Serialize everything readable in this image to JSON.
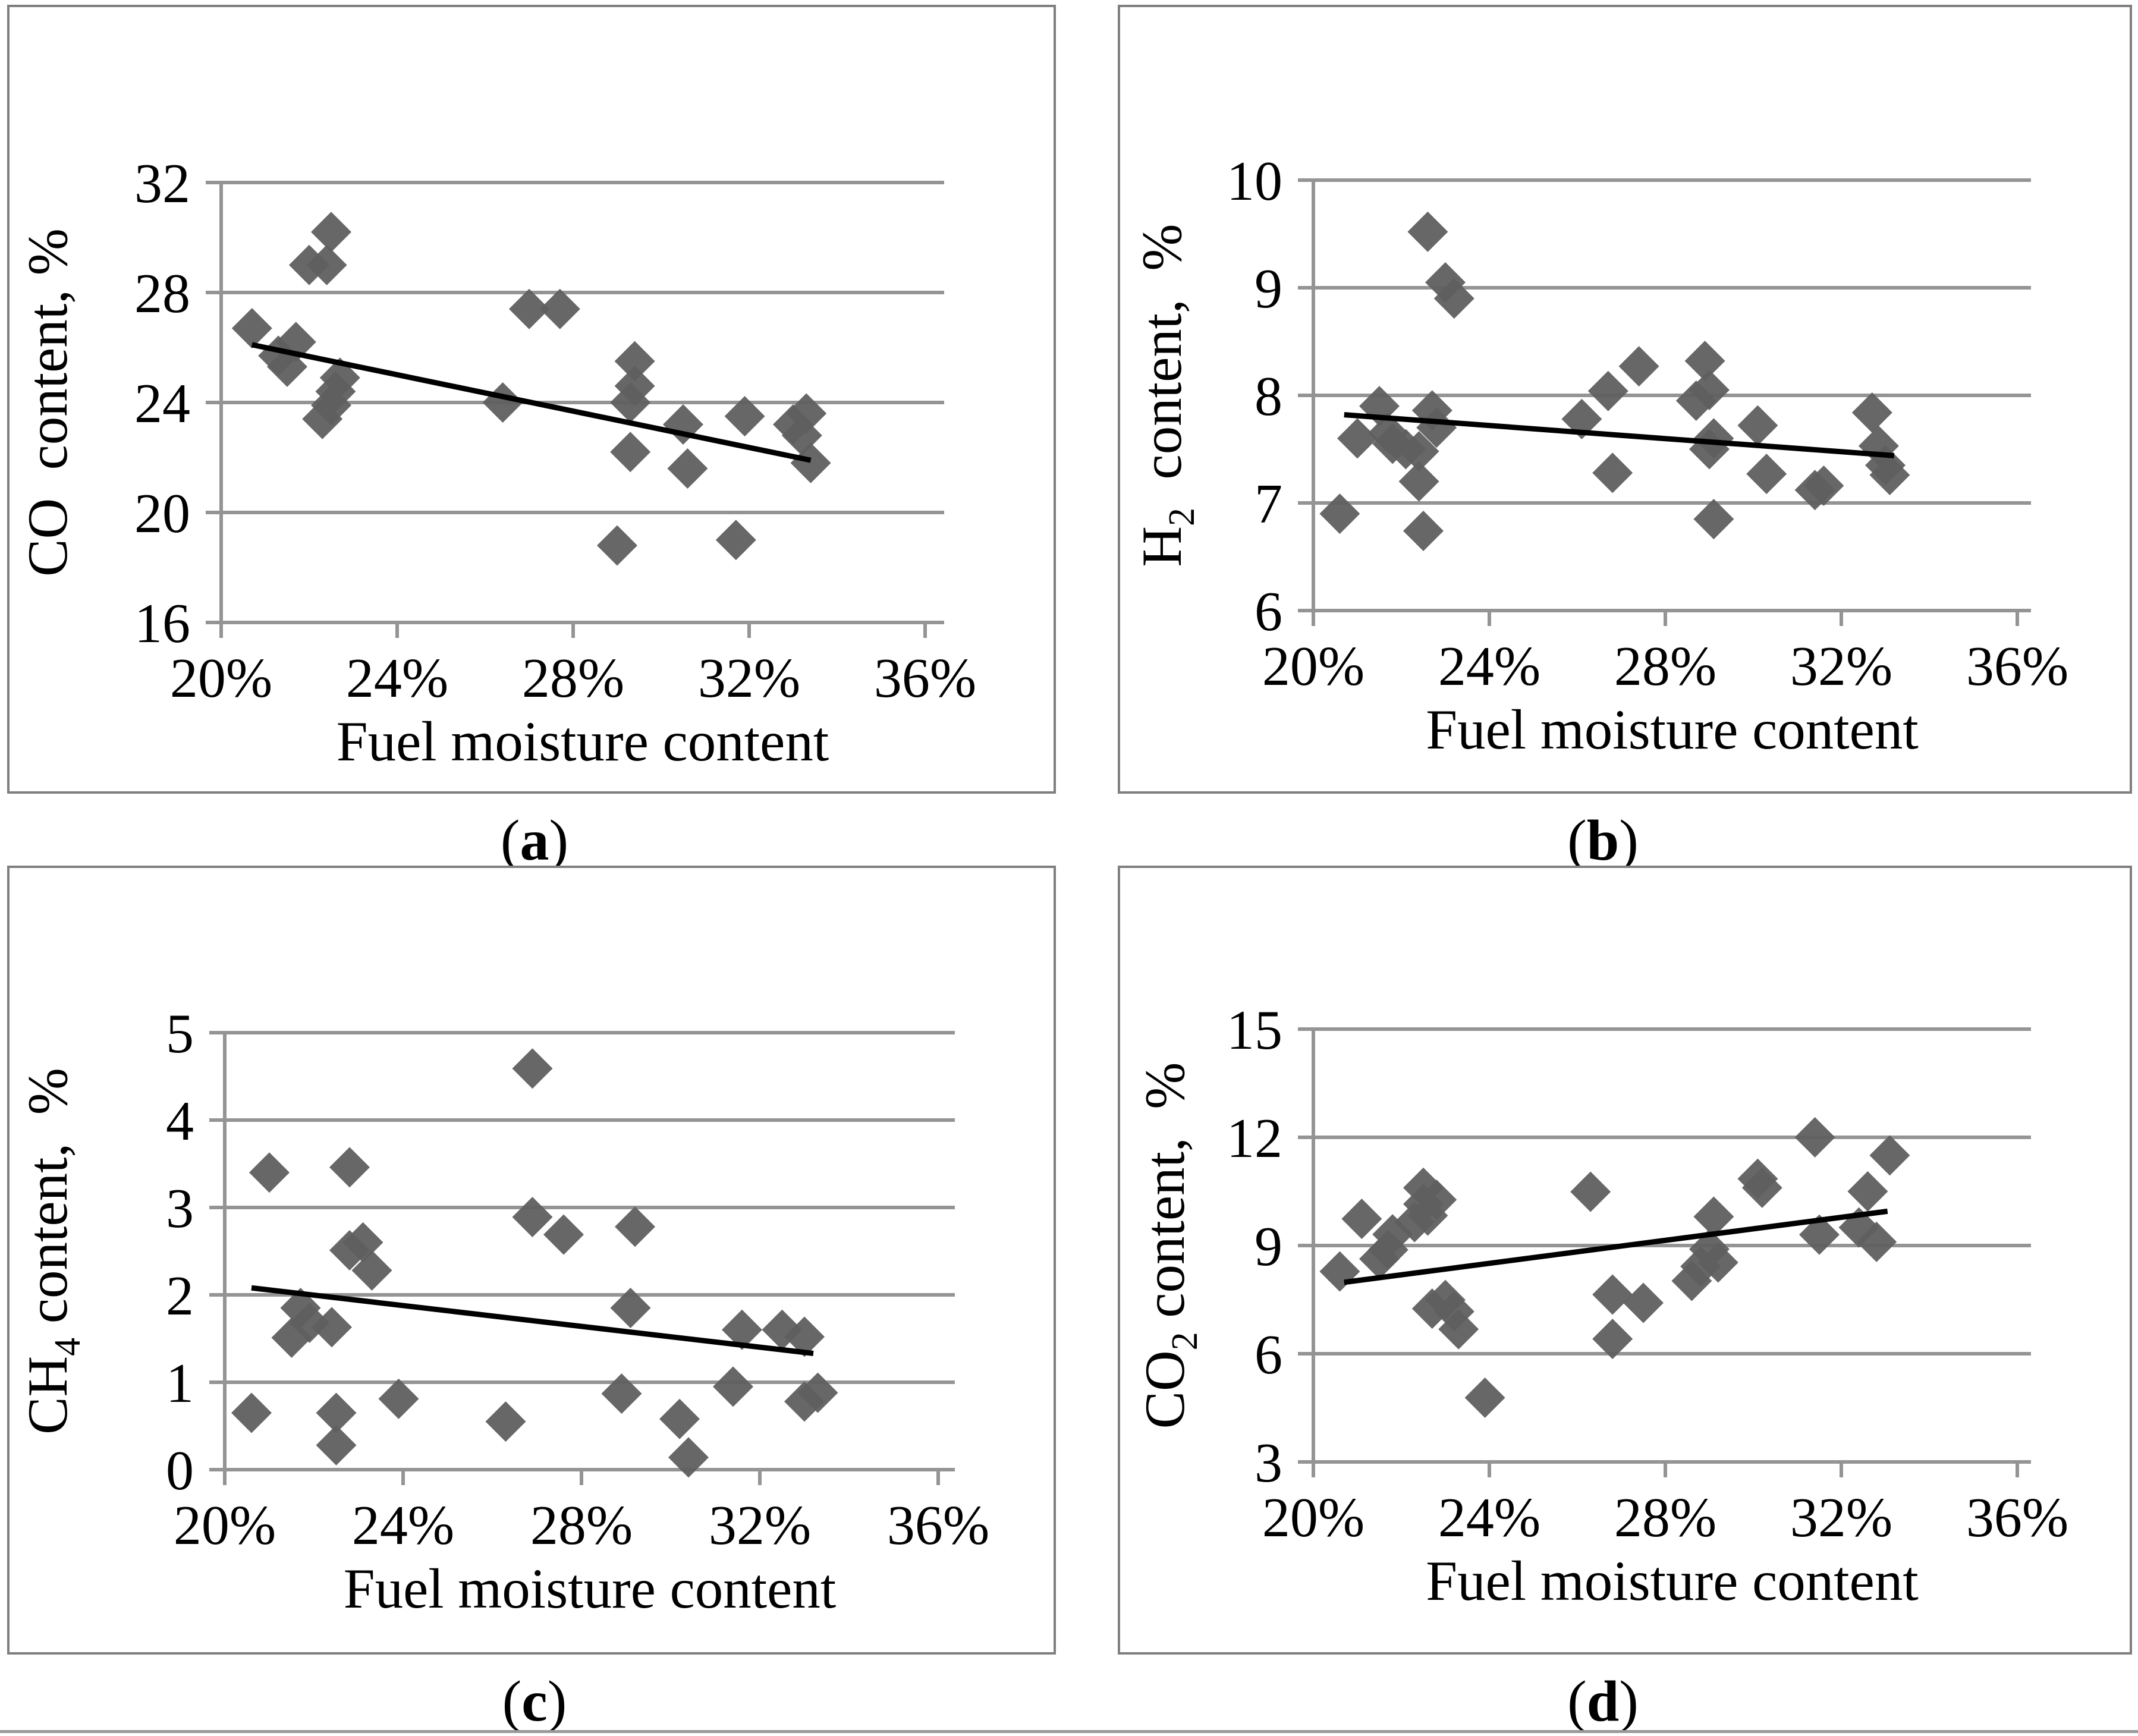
{
  "figure": {
    "caption_open": "(",
    "caption_close": ")",
    "xlabel": "Fuel moisture content",
    "x_tick_labels": [
      "20%",
      "24%",
      "28%",
      "32%",
      "36%"
    ],
    "x_tick_values": [
      20,
      24,
      28,
      32,
      36
    ]
  },
  "colors": {
    "marker": "#5f5f5f",
    "grid": "#949494",
    "trend": "#000000",
    "panel_border": "#7f7f7f",
    "text": "#000000",
    "background": "#ffffff",
    "bottom_rule": "#9a9a9a"
  },
  "chart_data": [
    {
      "type": "scatter",
      "caption": "a",
      "title": "",
      "xlabel": "Fuel moisture content",
      "ylabel": "CO content, %",
      "ylabel_parts": {
        "base": "CO",
        "sub": "",
        "rest": "  content, %"
      },
      "xlim": [
        20,
        36.4
      ],
      "ylim": [
        16,
        32
      ],
      "x_tick_labels": [
        "20%",
        "24%",
        "28%",
        "32%",
        "36%"
      ],
      "x_tick_values": [
        20,
        24,
        28,
        32,
        36
      ],
      "y_tick_labels": [
        "32",
        "28",
        "24",
        "20",
        "16"
      ],
      "y_tick_values": [
        32,
        28,
        24,
        20,
        16
      ],
      "grid": "horizontal",
      "marker": "diamond",
      "legend": "none",
      "points": [
        [
          20.7,
          26.7
        ],
        [
          21.3,
          25.7
        ],
        [
          21.7,
          26.2
        ],
        [
          21.5,
          25.3
        ],
        [
          22.7,
          24.9
        ],
        [
          22.6,
          24.4
        ],
        [
          22.5,
          23.9
        ],
        [
          22.3,
          23.4
        ],
        [
          22.0,
          29.0
        ],
        [
          22.4,
          29.0
        ],
        [
          22.5,
          30.2
        ],
        [
          26.4,
          24.0
        ],
        [
          27.0,
          27.4
        ],
        [
          27.7,
          27.4
        ],
        [
          29.4,
          25.5
        ],
        [
          29.4,
          24.6
        ],
        [
          29.3,
          24.0
        ],
        [
          29.3,
          22.2
        ],
        [
          29.0,
          18.8
        ],
        [
          30.5,
          23.2
        ],
        [
          30.6,
          21.6
        ],
        [
          31.9,
          23.5
        ],
        [
          31.7,
          19.0
        ],
        [
          33.0,
          23.2
        ],
        [
          33.2,
          22.8
        ],
        [
          33.3,
          23.6
        ],
        [
          33.4,
          21.8
        ]
      ],
      "trend": {
        "x1": 20.7,
        "y1": 26.1,
        "x2": 33.4,
        "y2": 21.9
      }
    },
    {
      "type": "scatter",
      "caption": "b",
      "title": "",
      "xlabel": "Fuel moisture content",
      "ylabel": "H2 content, %",
      "ylabel_parts": {
        "base": "H",
        "sub": "2",
        "rest": "  content,  %"
      },
      "xlim": [
        20,
        36.4
      ],
      "ylim": [
        6,
        10
      ],
      "x_tick_labels": [
        "20%",
        "24%",
        "28%",
        "32%",
        "36%"
      ],
      "x_tick_values": [
        20,
        24,
        28,
        32,
        36
      ],
      "y_tick_labels": [
        "10",
        "9",
        "8",
        "7",
        "6"
      ],
      "y_tick_values": [
        10,
        9,
        8,
        7,
        6
      ],
      "grid": "horizontal",
      "marker": "diamond",
      "legend": "none",
      "points": [
        [
          20.6,
          6.9
        ],
        [
          21.0,
          7.6
        ],
        [
          21.5,
          7.9
        ],
        [
          21.7,
          7.65
        ],
        [
          21.8,
          7.55
        ],
        [
          22.1,
          7.5
        ],
        [
          22.4,
          7.48
        ],
        [
          22.4,
          7.2
        ],
        [
          22.5,
          6.74
        ],
        [
          22.7,
          7.86
        ],
        [
          22.8,
          7.7
        ],
        [
          22.6,
          9.52
        ],
        [
          23.0,
          9.05
        ],
        [
          23.2,
          8.9
        ],
        [
          26.1,
          7.78
        ],
        [
          26.7,
          8.04
        ],
        [
          26.8,
          7.28
        ],
        [
          27.4,
          8.27
        ],
        [
          28.7,
          7.95
        ],
        [
          29.0,
          8.05
        ],
        [
          28.9,
          8.32
        ],
        [
          29.1,
          7.6
        ],
        [
          29.0,
          7.5
        ],
        [
          29.1,
          6.85
        ],
        [
          30.1,
          7.72
        ],
        [
          30.3,
          7.27
        ],
        [
          31.4,
          7.12
        ],
        [
          31.6,
          7.16
        ],
        [
          32.7,
          7.84
        ],
        [
          32.85,
          7.53
        ],
        [
          33.0,
          7.35
        ],
        [
          33.1,
          7.26
        ]
      ],
      "trend": {
        "x1": 20.7,
        "y1": 7.82,
        "x2": 33.2,
        "y2": 7.44
      }
    },
    {
      "type": "scatter",
      "caption": "c",
      "title": "",
      "xlabel": "Fuel moisture content",
      "ylabel": "CH4 content, %",
      "ylabel_parts": {
        "base": "CH",
        "sub": "4",
        "rest": " content,  %"
      },
      "xlim": [
        20,
        36.4
      ],
      "ylim": [
        0,
        5
      ],
      "x_tick_labels": [
        "20%",
        "24%",
        "28%",
        "32%",
        "36%"
      ],
      "x_tick_values": [
        20,
        24,
        28,
        32,
        36
      ],
      "y_tick_labels": [
        "5",
        "4",
        "3",
        "2",
        "1",
        "0"
      ],
      "y_tick_values": [
        5,
        4,
        3,
        2,
        1,
        0
      ],
      "grid": "horizontal",
      "marker": "diamond",
      "legend": "none",
      "points": [
        [
          20.6,
          0.65
        ],
        [
          21.0,
          3.4
        ],
        [
          21.5,
          1.51
        ],
        [
          21.7,
          1.85
        ],
        [
          21.9,
          1.68
        ],
        [
          22.4,
          1.63
        ],
        [
          22.5,
          0.65
        ],
        [
          22.5,
          0.28
        ],
        [
          22.8,
          3.46
        ],
        [
          22.8,
          2.51
        ],
        [
          23.1,
          2.6
        ],
        [
          23.3,
          2.28
        ],
        [
          23.9,
          0.81
        ],
        [
          26.3,
          0.55
        ],
        [
          26.9,
          4.59
        ],
        [
          26.9,
          2.89
        ],
        [
          27.6,
          2.69
        ],
        [
          28.9,
          0.87
        ],
        [
          29.1,
          1.85
        ],
        [
          29.2,
          2.78
        ],
        [
          30.2,
          0.58
        ],
        [
          30.4,
          0.14
        ],
        [
          31.4,
          0.95
        ],
        [
          31.6,
          1.6
        ],
        [
          32.5,
          1.6
        ],
        [
          33.0,
          1.52
        ],
        [
          33.0,
          0.78
        ],
        [
          33.3,
          0.88
        ]
      ],
      "trend": {
        "x1": 20.6,
        "y1": 2.08,
        "x2": 33.2,
        "y2": 1.33
      }
    },
    {
      "type": "scatter",
      "caption": "d",
      "title": "",
      "xlabel": "Fuel moisture content",
      "ylabel": "CO2 content, %",
      "ylabel_parts": {
        "base": "CO",
        "sub": "2",
        "rest": " content,  %"
      },
      "xlim": [
        20,
        36.4
      ],
      "ylim": [
        3,
        15
      ],
      "x_tick_labels": [
        "20%",
        "24%",
        "28%",
        "32%",
        "36%"
      ],
      "x_tick_values": [
        20,
        24,
        28,
        32,
        36
      ],
      "y_tick_labels": [
        "15",
        "12",
        "9",
        "6",
        "3"
      ],
      "y_tick_values": [
        15,
        12,
        9,
        6,
        3
      ],
      "grid": "horizontal",
      "marker": "diamond",
      "legend": "none",
      "points": [
        [
          20.6,
          8.28
        ],
        [
          21.1,
          9.74
        ],
        [
          21.5,
          8.63
        ],
        [
          21.7,
          8.88
        ],
        [
          21.8,
          9.31
        ],
        [
          22.3,
          9.65
        ],
        [
          22.5,
          10.6
        ],
        [
          22.5,
          10.15
        ],
        [
          22.6,
          9.83
        ],
        [
          22.8,
          10.27
        ],
        [
          22.7,
          7.25
        ],
        [
          23.0,
          7.49
        ],
        [
          23.2,
          7.17
        ],
        [
          23.3,
          6.68
        ],
        [
          23.9,
          4.78
        ],
        [
          26.3,
          10.49
        ],
        [
          26.8,
          7.64
        ],
        [
          26.8,
          6.41
        ],
        [
          27.5,
          7.41
        ],
        [
          28.6,
          8.02
        ],
        [
          28.8,
          8.42
        ],
        [
          29.0,
          8.9
        ],
        [
          29.1,
          9.8
        ],
        [
          29.2,
          8.53
        ],
        [
          30.1,
          10.85
        ],
        [
          30.2,
          10.6
        ],
        [
          31.4,
          12.0
        ],
        [
          31.5,
          9.3
        ],
        [
          32.4,
          9.5
        ],
        [
          32.6,
          10.5
        ],
        [
          32.8,
          9.1
        ],
        [
          33.1,
          11.5
        ]
      ],
      "trend": {
        "x1": 20.7,
        "y1": 7.98,
        "x2": 33.05,
        "y2": 9.95
      }
    }
  ]
}
